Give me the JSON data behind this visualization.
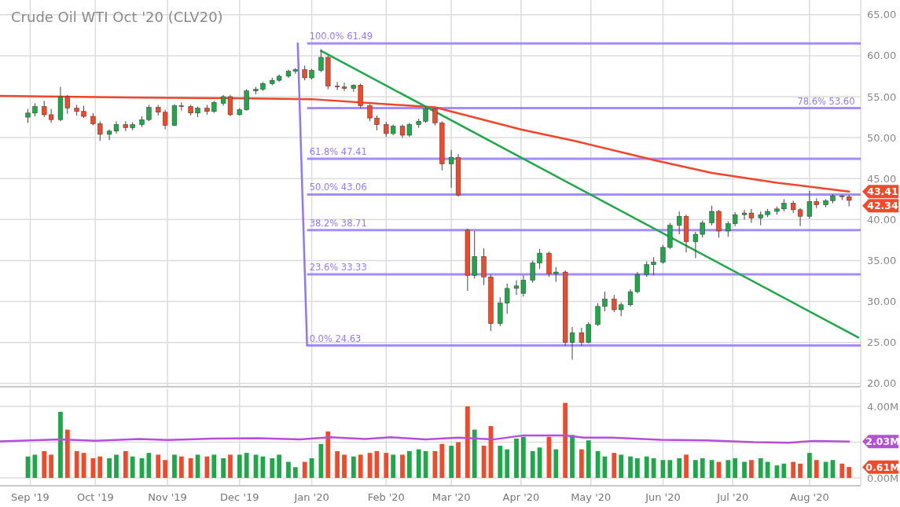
{
  "chart_data": [
    {
      "type": "candlestick",
      "title": "Crude Oil WTI Oct '20 (CLV20)",
      "tick_labels": "y",
      "grid": true,
      "xlim": [
        "2019-08-21",
        "2020-08-25"
      ],
      "ylim": [
        19.6,
        66.8
      ],
      "xticks": [
        "2019-09-03",
        "2019-10-01",
        "2019-11-01",
        "2019-12-02",
        "2020-01-02",
        "2020-02-03",
        "2020-03-02",
        "2020-04-01",
        "2020-05-01",
        "2020-06-01",
        "2020-07-01",
        "2020-08-03"
      ],
      "yticks": [
        {
          "value": 20,
          "label": "20.00"
        },
        {
          "value": 25,
          "label": "25.00"
        },
        {
          "value": 30,
          "label": "30.00"
        },
        {
          "value": 35,
          "label": "35.00"
        },
        {
          "value": 40,
          "label": "40.00"
        },
        {
          "value": 45,
          "label": "45.00"
        },
        {
          "value": 50,
          "label": "50.00"
        },
        {
          "value": 55,
          "label": "55.00"
        },
        {
          "value": 60,
          "label": "60.00"
        },
        {
          "value": 65,
          "label": "65.00"
        }
      ],
      "x": [
        "2019-09-02",
        "2019-09-05",
        "2019-09-09",
        "2019-09-12",
        "2019-09-16",
        "2019-09-19",
        "2019-09-23",
        "2019-09-26",
        "2019-09-30",
        "2019-10-03",
        "2019-10-07",
        "2019-10-10",
        "2019-10-14",
        "2019-10-17",
        "2019-10-21",
        "2019-10-24",
        "2019-10-28",
        "2019-10-31",
        "2019-11-04",
        "2019-11-07",
        "2019-11-11",
        "2019-11-14",
        "2019-11-18",
        "2019-11-21",
        "2019-11-25",
        "2019-11-28",
        "2019-12-02",
        "2019-12-05",
        "2019-12-09",
        "2019-12-12",
        "2019-12-16",
        "2019-12-19",
        "2019-12-23",
        "2019-12-26",
        "2019-12-30",
        "2020-01-02",
        "2020-01-06",
        "2020-01-09",
        "2020-01-13",
        "2020-01-16",
        "2020-01-20",
        "2020-01-23",
        "2020-01-27",
        "2020-01-30",
        "2020-02-03",
        "2020-02-06",
        "2020-02-10",
        "2020-02-13",
        "2020-02-17",
        "2020-02-20",
        "2020-02-24",
        "2020-02-27",
        "2020-03-02",
        "2020-03-05",
        "2020-03-09",
        "2020-03-12",
        "2020-03-16",
        "2020-03-19",
        "2020-03-23",
        "2020-03-26",
        "2020-03-30",
        "2020-04-02",
        "2020-04-06",
        "2020-04-09",
        "2020-04-13",
        "2020-04-16",
        "2020-04-20",
        "2020-04-23",
        "2020-04-27",
        "2020-04-30",
        "2020-05-04",
        "2020-05-07",
        "2020-05-11",
        "2020-05-14",
        "2020-05-18",
        "2020-05-21",
        "2020-05-25",
        "2020-05-28",
        "2020-06-01",
        "2020-06-04",
        "2020-06-08",
        "2020-06-11",
        "2020-06-15",
        "2020-06-18",
        "2020-06-22",
        "2020-06-25",
        "2020-06-29",
        "2020-07-02",
        "2020-07-06",
        "2020-07-09",
        "2020-07-13",
        "2020-07-16",
        "2020-07-20",
        "2020-07-23",
        "2020-07-27",
        "2020-07-30",
        "2020-08-03",
        "2020-08-06",
        "2020-08-10",
        "2020-08-13",
        "2020-08-17",
        "2020-08-20"
      ],
      "ohlc": [
        [
          52.5,
          53.5,
          51.8,
          53.0
        ],
        [
          53.0,
          54.2,
          52.6,
          53.8
        ],
        [
          53.8,
          54.5,
          52.5,
          52.8
        ],
        [
          52.8,
          53.5,
          51.8,
          52.2
        ],
        [
          52.2,
          56.2,
          52.0,
          55.0
        ],
        [
          55.0,
          55.2,
          52.9,
          53.6
        ],
        [
          53.6,
          54.0,
          52.7,
          53.2
        ],
        [
          53.2,
          53.9,
          52.4,
          52.6
        ],
        [
          52.6,
          53.0,
          51.5,
          51.7
        ],
        [
          51.7,
          52.0,
          49.6,
          50.4
        ],
        [
          50.4,
          51.0,
          49.7,
          50.8
        ],
        [
          50.8,
          52.0,
          50.5,
          51.6
        ],
        [
          51.6,
          52.0,
          50.8,
          51.2
        ],
        [
          51.2,
          51.9,
          50.9,
          51.6
        ],
        [
          51.6,
          52.6,
          51.3,
          52.2
        ],
        [
          52.2,
          54.0,
          52.0,
          53.7
        ],
        [
          53.7,
          54.0,
          52.7,
          53.1
        ],
        [
          53.1,
          53.4,
          51.0,
          51.5
        ],
        [
          51.5,
          54.1,
          51.4,
          53.9
        ],
        [
          53.9,
          54.3,
          53.3,
          53.8
        ],
        [
          53.8,
          54.0,
          52.7,
          53.0
        ],
        [
          53.0,
          53.8,
          52.5,
          53.6
        ],
        [
          53.6,
          54.0,
          52.8,
          53.2
        ],
        [
          53.2,
          54.5,
          53.0,
          54.3
        ],
        [
          54.2,
          55.2,
          53.9,
          55.0
        ],
        [
          55.0,
          55.2,
          52.6,
          52.8
        ],
        [
          52.8,
          53.6,
          52.7,
          53.4
        ],
        [
          53.4,
          55.9,
          53.3,
          55.7
        ],
        [
          55.7,
          56.2,
          55.3,
          55.9
        ],
        [
          55.9,
          56.8,
          55.7,
          56.6
        ],
        [
          56.6,
          57.3,
          56.4,
          57.0
        ],
        [
          57.0,
          57.7,
          56.8,
          57.5
        ],
        [
          57.5,
          58.3,
          57.3,
          58.1
        ],
        [
          58.1,
          58.5,
          57.8,
          58.3
        ],
        [
          58.3,
          58.8,
          57.0,
          57.3
        ],
        [
          57.3,
          58.4,
          57.1,
          58.2
        ],
        [
          58.2,
          60.8,
          58.0,
          59.8
        ],
        [
          59.8,
          60.0,
          55.9,
          56.3
        ],
        [
          56.3,
          56.8,
          55.8,
          56.2
        ],
        [
          56.2,
          56.7,
          55.7,
          56.0
        ],
        [
          56.0,
          56.5,
          55.6,
          56.4
        ],
        [
          56.4,
          56.6,
          53.6,
          53.9
        ],
        [
          53.9,
          54.1,
          52.0,
          52.4
        ],
        [
          52.4,
          52.7,
          50.9,
          51.6
        ],
        [
          51.6,
          51.9,
          50.1,
          50.5
        ],
        [
          50.5,
          51.6,
          50.3,
          51.4
        ],
        [
          51.4,
          51.6,
          50.0,
          50.3
        ],
        [
          50.3,
          51.8,
          50.1,
          51.6
        ],
        [
          51.6,
          52.3,
          51.2,
          52.0
        ],
        [
          52.0,
          53.8,
          51.8,
          53.5
        ],
        [
          53.5,
          53.6,
          51.5,
          51.8
        ],
        [
          51.8,
          52.0,
          46.0,
          46.8
        ],
        [
          46.8,
          48.5,
          43.9,
          47.6
        ],
        [
          47.6,
          48.0,
          42.8,
          43.0
        ],
        [
          38.7,
          38.9,
          31.3,
          33.2
        ],
        [
          33.2,
          38.6,
          32.8,
          35.5
        ],
        [
          35.5,
          36.5,
          32.0,
          33.0
        ],
        [
          33.0,
          33.3,
          26.4,
          27.3
        ],
        [
          27.3,
          30.5,
          27.0,
          29.8
        ],
        [
          29.8,
          32.2,
          28.5,
          31.6
        ],
        [
          31.6,
          32.6,
          30.8,
          31.9
        ],
        [
          31.0,
          33.2,
          30.6,
          32.6
        ],
        [
          32.6,
          35.0,
          32.3,
          34.7
        ],
        [
          34.7,
          36.4,
          34.0,
          35.9
        ],
        [
          35.9,
          36.1,
          33.0,
          33.4
        ],
        [
          33.4,
          34.2,
          32.4,
          33.6
        ],
        [
          33.6,
          33.8,
          24.6,
          25.0
        ],
        [
          25.0,
          26.9,
          22.9,
          26.2
        ],
        [
          26.2,
          26.8,
          24.6,
          25.0
        ],
        [
          25.0,
          27.5,
          24.9,
          27.2
        ],
        [
          27.2,
          29.8,
          27.0,
          29.4
        ],
        [
          29.4,
          31.2,
          28.8,
          30.3
        ],
        [
          30.3,
          30.8,
          28.7,
          29.0
        ],
        [
          29.0,
          29.9,
          28.2,
          29.6
        ],
        [
          29.6,
          31.5,
          29.4,
          31.2
        ],
        [
          31.2,
          33.6,
          31.0,
          33.3
        ],
        [
          33.3,
          34.9,
          33.0,
          34.5
        ],
        [
          34.5,
          35.4,
          33.2,
          34.8
        ],
        [
          34.8,
          36.9,
          34.6,
          36.6
        ],
        [
          36.6,
          39.6,
          36.4,
          39.3
        ],
        [
          39.3,
          41.0,
          38.2,
          40.4
        ],
        [
          40.4,
          40.6,
          36.0,
          37.3
        ],
        [
          37.3,
          38.5,
          35.3,
          38.2
        ],
        [
          38.2,
          39.9,
          37.8,
          39.6
        ],
        [
          39.6,
          41.7,
          39.3,
          41.0
        ],
        [
          41.0,
          41.2,
          37.8,
          38.6
        ],
        [
          38.6,
          39.8,
          37.9,
          39.5
        ],
        [
          39.5,
          40.9,
          39.2,
          40.6
        ],
        [
          40.6,
          41.2,
          40.0,
          40.8
        ],
        [
          40.8,
          41.3,
          39.6,
          40.2
        ],
        [
          40.2,
          41.0,
          39.3,
          40.6
        ],
        [
          40.6,
          41.3,
          40.3,
          41.0
        ],
        [
          41.0,
          41.6,
          40.6,
          41.3
        ],
        [
          41.3,
          42.5,
          41.0,
          42.0
        ],
        [
          42.0,
          42.3,
          40.8,
          41.2
        ],
        [
          41.2,
          41.4,
          39.2,
          40.4
        ],
        [
          40.4,
          43.5,
          40.1,
          42.2
        ],
        [
          42.2,
          42.6,
          41.4,
          41.8
        ],
        [
          41.8,
          42.5,
          41.5,
          42.3
        ],
        [
          42.3,
          43.1,
          42.0,
          42.9
        ],
        [
          42.9,
          43.0,
          42.4,
          42.8
        ],
        [
          42.8,
          43.0,
          41.6,
          42.34
        ]
      ],
      "series": [
        {
          "type": "line",
          "color": "#f0452a",
          "x": [
            "2019-08-21",
            "2019-10-15",
            "2019-12-02",
            "2020-01-02",
            "2020-02-24",
            "2020-04-01",
            "2020-04-24",
            "2020-05-29",
            "2020-06-22",
            "2020-07-20",
            "2020-08-20"
          ],
          "values": [
            55.1,
            54.9,
            54.8,
            54.7,
            53.7,
            51.0,
            49.6,
            47.2,
            45.7,
            44.5,
            43.41
          ]
        },
        {
          "type": "line",
          "color": "#1ea84a",
          "x": [
            "2020-01-06",
            "2020-08-24"
          ],
          "values": [
            60.6,
            25.6
          ]
        },
        {
          "type": "line",
          "color": "#8f75ff",
          "x": [
            "2019-12-27",
            "2019-12-31"
          ],
          "values": [
            61.49,
            24.63
          ]
        }
      ],
      "ref_lines": [
        {
          "axis": "y",
          "value": 61.49,
          "label": "100.0% 61.49",
          "color": "#9479ff"
        },
        {
          "axis": "y",
          "value": 53.6,
          "label": "78.6% 53.60",
          "color": "#9479ff"
        },
        {
          "axis": "y",
          "value": 47.41,
          "label": "61.8% 47.41",
          "color": "#9479ff"
        },
        {
          "axis": "y",
          "value": 43.06,
          "label": "50.0% 43.06",
          "color": "#9479ff"
        },
        {
          "axis": "y",
          "value": 38.71,
          "label": "38.2% 38.71",
          "color": "#9479ff"
        },
        {
          "axis": "y",
          "value": 33.33,
          "label": "23.6% 33.33",
          "color": "#9479ff"
        },
        {
          "axis": "y",
          "value": 24.63,
          "label": "0.0% 24.63",
          "color": "#9479ff"
        }
      ],
      "annotations": [
        "43.41",
        "42.34"
      ]
    },
    {
      "type": "bar",
      "grid": true,
      "xlim": [
        "2019-08-21",
        "2020-08-25"
      ],
      "ylim": [
        -0.44,
        4.97
      ],
      "xticks": [
        {
          "value": "2019-09-03",
          "label": "Sep '19"
        },
        {
          "value": "2019-10-01",
          "label": "Oct '19"
        },
        {
          "value": "2019-11-01",
          "label": "Nov '19"
        },
        {
          "value": "2019-12-02",
          "label": "Dec '19"
        },
        {
          "value": "2020-01-02",
          "label": "Jan '20"
        },
        {
          "value": "2020-02-03",
          "label": "Feb '20"
        },
        {
          "value": "2020-03-02",
          "label": "Mar '20"
        },
        {
          "value": "2020-04-01",
          "label": "Apr '20"
        },
        {
          "value": "2020-05-01",
          "label": "May '20"
        },
        {
          "value": "2020-06-01",
          "label": "Jun '20"
        },
        {
          "value": "2020-07-01",
          "label": "Jul '20"
        },
        {
          "value": "2020-08-03",
          "label": "Aug '20"
        }
      ],
      "yticks": [
        {
          "value": 0,
          "label": "0.00M"
        },
        {
          "value": 2,
          "label": null
        },
        {
          "value": 4,
          "label": "4.00M"
        }
      ],
      "x": [
        "2019-09-02",
        "2019-09-05",
        "2019-09-09",
        "2019-09-12",
        "2019-09-16",
        "2019-09-19",
        "2019-09-23",
        "2019-09-26",
        "2019-09-30",
        "2019-10-03",
        "2019-10-07",
        "2019-10-10",
        "2019-10-14",
        "2019-10-17",
        "2019-10-21",
        "2019-10-24",
        "2019-10-28",
        "2019-10-31",
        "2019-11-04",
        "2019-11-07",
        "2019-11-11",
        "2019-11-14",
        "2019-11-18",
        "2019-11-21",
        "2019-11-25",
        "2019-11-28",
        "2019-12-02",
        "2019-12-05",
        "2019-12-09",
        "2019-12-12",
        "2019-12-16",
        "2019-12-19",
        "2019-12-23",
        "2019-12-26",
        "2019-12-30",
        "2020-01-02",
        "2020-01-06",
        "2020-01-09",
        "2020-01-13",
        "2020-01-16",
        "2020-01-20",
        "2020-01-23",
        "2020-01-27",
        "2020-01-30",
        "2020-02-03",
        "2020-02-06",
        "2020-02-10",
        "2020-02-13",
        "2020-02-17",
        "2020-02-20",
        "2020-02-24",
        "2020-02-27",
        "2020-03-02",
        "2020-03-05",
        "2020-03-09",
        "2020-03-12",
        "2020-03-16",
        "2020-03-19",
        "2020-03-23",
        "2020-03-26",
        "2020-03-30",
        "2020-04-02",
        "2020-04-06",
        "2020-04-09",
        "2020-04-13",
        "2020-04-16",
        "2020-04-20",
        "2020-04-23",
        "2020-04-27",
        "2020-04-30",
        "2020-05-04",
        "2020-05-07",
        "2020-05-11",
        "2020-05-14",
        "2020-05-18",
        "2020-05-21",
        "2020-05-25",
        "2020-05-28",
        "2020-06-01",
        "2020-06-04",
        "2020-06-08",
        "2020-06-11",
        "2020-06-15",
        "2020-06-18",
        "2020-06-22",
        "2020-06-25",
        "2020-06-29",
        "2020-07-02",
        "2020-07-06",
        "2020-07-09",
        "2020-07-13",
        "2020-07-16",
        "2020-07-20",
        "2020-07-23",
        "2020-07-27",
        "2020-07-30",
        "2020-08-03",
        "2020-08-06",
        "2020-08-10",
        "2020-08-13",
        "2020-08-17",
        "2020-08-20"
      ],
      "series": [
        {
          "type": "bar",
          "values": [
            1.2,
            1.3,
            1.5,
            1.3,
            3.7,
            2.7,
            1.5,
            1.4,
            1.1,
            1.2,
            1.1,
            1.3,
            1.5,
            1.2,
            1.1,
            1.4,
            1.3,
            1.0,
            1.3,
            1.2,
            1.1,
            1.3,
            1.2,
            1.3,
            1.1,
            1.3,
            1.3,
            1.4,
            1.3,
            1.2,
            1.1,
            1.3,
            0.9,
            0.6,
            0.9,
            1.1,
            1.9,
            2.6,
            1.5,
            1.3,
            1.2,
            1.3,
            1.4,
            1.5,
            1.4,
            1.3,
            1.3,
            1.5,
            1.6,
            1.5,
            1.5,
            1.9,
            1.8,
            2.0,
            4.0,
            2.7,
            1.8,
            2.9,
            1.8,
            1.6,
            2.2,
            2.3,
            1.5,
            1.7,
            2.3,
            1.6,
            4.2,
            2.4,
            1.6,
            2.1,
            1.5,
            1.2,
            1.4,
            1.3,
            1.2,
            1.1,
            1.2,
            1.1,
            1.0,
            1.0,
            1.1,
            1.3,
            1.0,
            1.1,
            1.0,
            0.9,
            1.0,
            1.1,
            0.9,
            1.0,
            1.1,
            0.9,
            0.7,
            0.8,
            0.9,
            0.8,
            1.4,
            1.0,
            0.9,
            1.0,
            0.8,
            0.61
          ],
          "colors": [
            "#1ea84a",
            "#1ea84a",
            "#f04a2a",
            "#f04a2a",
            "#1ea84a",
            "#f04a2a",
            "#f04a2a",
            "#f04a2a",
            "#f04a2a",
            "#f04a2a",
            "#1ea84a",
            "#1ea84a",
            "#f04a2a",
            "#1ea84a",
            "#1ea84a",
            "#1ea84a",
            "#f04a2a",
            "#f04a2a",
            "#1ea84a",
            "#f04a2a",
            "#f04a2a",
            "#1ea84a",
            "#f04a2a",
            "#1ea84a",
            "#1ea84a",
            "#f04a2a",
            "#1ea84a",
            "#1ea84a",
            "#1ea84a",
            "#1ea84a",
            "#1ea84a",
            "#1ea84a",
            "#1ea84a",
            "#1ea84a",
            "#f04a2a",
            "#1ea84a",
            "#1ea84a",
            "#f04a2a",
            "#f04a2a",
            "#f04a2a",
            "#1ea84a",
            "#f04a2a",
            "#f04a2a",
            "#f04a2a",
            "#f04a2a",
            "#1ea84a",
            "#f04a2a",
            "#1ea84a",
            "#1ea84a",
            "#1ea84a",
            "#f04a2a",
            "#f04a2a",
            "#1ea84a",
            "#f04a2a",
            "#f04a2a",
            "#1ea84a",
            "#f04a2a",
            "#f04a2a",
            "#1ea84a",
            "#1ea84a",
            "#1ea84a",
            "#1ea84a",
            "#1ea84a",
            "#1ea84a",
            "#f04a2a",
            "#1ea84a",
            "#f04a2a",
            "#1ea84a",
            "#f04a2a",
            "#1ea84a",
            "#1ea84a",
            "#1ea84a",
            "#f04a2a",
            "#1ea84a",
            "#1ea84a",
            "#1ea84a",
            "#1ea84a",
            "#1ea84a",
            "#1ea84a",
            "#1ea84a",
            "#1ea84a",
            "#f04a2a",
            "#1ea84a",
            "#1ea84a",
            "#1ea84a",
            "#f04a2a",
            "#1ea84a",
            "#1ea84a",
            "#1ea84a",
            "#f04a2a",
            "#1ea84a",
            "#1ea84a",
            "#1ea84a",
            "#1ea84a",
            "#f04a2a",
            "#f04a2a",
            "#1ea84a",
            "#f04a2a",
            "#1ea84a",
            "#1ea84a",
            "#f04a2a",
            "#f04a2a"
          ]
        },
        {
          "type": "line",
          "color": "#b44fd8",
          "x": [
            "2019-08-21",
            "2019-09-16",
            "2019-10-01",
            "2019-10-20",
            "2019-11-01",
            "2019-11-20",
            "2019-12-10",
            "2019-12-28",
            "2020-01-10",
            "2020-01-25",
            "2020-02-05",
            "2020-02-20",
            "2020-03-05",
            "2020-03-20",
            "2020-04-02",
            "2020-04-20",
            "2020-04-28",
            "2020-05-10",
            "2020-05-31",
            "2020-06-20",
            "2020-07-10",
            "2020-07-25",
            "2020-08-05",
            "2020-08-20"
          ],
          "values": [
            2.05,
            2.15,
            2.08,
            2.18,
            2.12,
            2.2,
            2.22,
            2.15,
            2.28,
            2.18,
            2.28,
            2.15,
            2.25,
            2.15,
            2.38,
            2.38,
            2.25,
            2.25,
            2.13,
            2.1,
            2.0,
            1.97,
            2.07,
            2.03
          ]
        }
      ],
      "annotations": [
        "2.03M",
        "0.61M"
      ]
    }
  ]
}
